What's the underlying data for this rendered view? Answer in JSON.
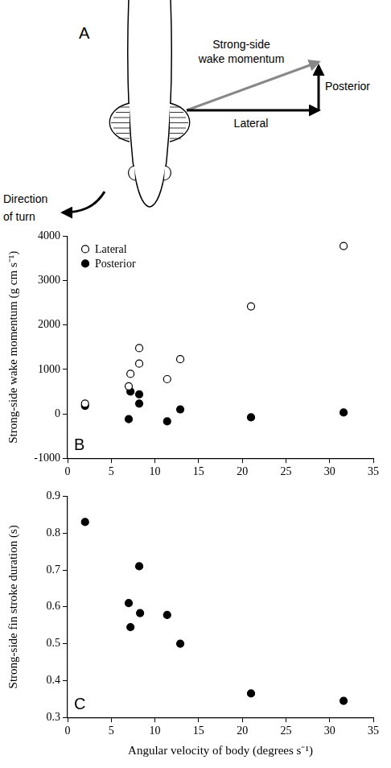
{
  "diagram": {
    "panel": "A",
    "labels": {
      "resultant": "Strong-side wake momentum",
      "lateral": "Lateral",
      "posterior": "Posterior",
      "turn": "Direction of turn"
    }
  },
  "chart_data": [
    {
      "type": "scatter",
      "panel": "B",
      "y_label": "Strong-side wake momentum (g cm s⁻¹)",
      "x": [
        2,
        7,
        7.2,
        8.2,
        8.2,
        11.4,
        12.9,
        21,
        31.6
      ],
      "series": [
        {
          "name": "Lateral",
          "color": "#000000",
          "marker": "open_circle",
          "values": [
            230,
            620,
            900,
            1480,
            1130,
            780,
            1230,
            2420,
            3780
          ]
        },
        {
          "name": "Posterior",
          "color": "#000000",
          "marker": "circle",
          "values": [
            180,
            -120,
            500,
            440,
            230,
            -170,
            100,
            -80,
            30
          ]
        }
      ],
      "xlim": [
        0,
        35
      ],
      "xticks": [
        0,
        5,
        10,
        15,
        20,
        25,
        30,
        35
      ],
      "ylim": [
        -1000,
        4000
      ],
      "yticks": [
        -1000,
        0,
        1000,
        2000,
        3000,
        4000
      ],
      "grid": false,
      "legend": "upper left"
    },
    {
      "type": "scatter",
      "panel": "C",
      "x_label": "Angular velocity of body (degrees s⁻¹)",
      "y_label": "Strong-side fin stroke duration (s)",
      "x": [
        2,
        7,
        7.2,
        8.2,
        8.3,
        11.4,
        12.9,
        21,
        31.6
      ],
      "values": [
        0.83,
        0.61,
        0.545,
        0.71,
        0.583,
        0.578,
        0.5,
        0.365,
        0.345
      ],
      "color": "#000000",
      "marker": "circle",
      "xlim": [
        0,
        35
      ],
      "xticks": [
        0,
        5,
        10,
        15,
        20,
        25,
        30,
        35
      ],
      "ylim": [
        0.3,
        0.9
      ],
      "yticks": [
        0.3,
        0.4,
        0.5,
        0.6,
        0.7,
        0.8,
        0.9
      ],
      "grid": false
    }
  ]
}
